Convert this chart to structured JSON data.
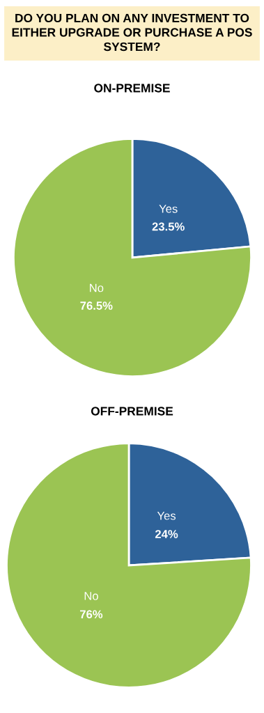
{
  "chart_data": [
    {
      "type": "pie",
      "title": "DO YOU PLAN ON ANY INVESTMENT TO EITHER UPGRADE OR PURCHASE A POS SYSTEM?",
      "subtitle": "ON-PREMISE",
      "categories": [
        "Yes",
        "No"
      ],
      "values": [
        23.5,
        76.5
      ],
      "colors": [
        "#2e6299",
        "#9bc453"
      ],
      "value_labels": [
        "23.5%",
        "76.5%"
      ],
      "legend": false
    },
    {
      "type": "pie",
      "title": "OFF-PREMISE",
      "categories": [
        "Yes",
        "No"
      ],
      "values": [
        24,
        76
      ],
      "colors": [
        "#2e6299",
        "#9bc453"
      ],
      "value_labels": [
        "24%",
        "76%"
      ],
      "legend": false
    }
  ]
}
